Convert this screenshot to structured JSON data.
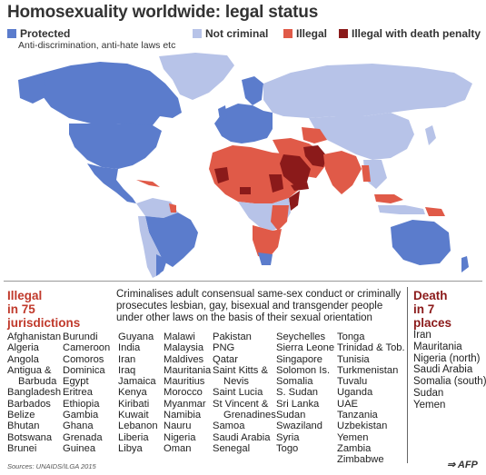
{
  "title": "Homosexuality worldwide: legal status",
  "legend": {
    "protected": "Protected",
    "protected_note": "Anti-discrimination, anti-hate laws etc",
    "not_criminal": "Not criminal",
    "illegal": "Illegal",
    "illegal_death": "Illegal with death penalty"
  },
  "colors": {
    "protected": "#5b7ccc",
    "not_criminal": "#b7c3e8",
    "illegal": "#e05a48",
    "illegal_death": "#8b1a1a"
  },
  "illegal_section": {
    "heading_1": "Illegal",
    "heading_2": "in 75",
    "heading_3": "jurisdictions",
    "description": "Criminalises adult consensual same-sex conduct or criminally prosecutes lesbian, gay, bisexual and transgender people under other laws on the basis of their sexual orientation",
    "columns": [
      [
        "Afghanistan",
        "Algeria",
        "Angola",
        "Antigua &",
        "Barbuda",
        "Bangladesh",
        "Barbados",
        "Belize",
        "Bhutan",
        "Botswana",
        "Brunei"
      ],
      [
        "Burundi",
        "Cameroon",
        "Comoros",
        "Dominica",
        "Egypt",
        "Eritrea",
        "Ethiopia",
        "Gambia",
        "Ghana",
        "Grenada",
        "Guinea"
      ],
      [
        "Guyana",
        "India",
        "Iran",
        "Iraq",
        "Jamaica",
        "Kenya",
        "Kiribati",
        "Kuwait",
        "Lebanon",
        "Liberia",
        "Libya"
      ],
      [
        "Malawi",
        "Malaysia",
        "Maldives",
        "Mauritania",
        "Mauritius",
        "Morocco",
        "Myanmar",
        "Namibia",
        "Nauru",
        "Nigeria",
        "Oman"
      ],
      [
        "Pakistan",
        "PNG",
        "Qatar",
        "Saint Kitts &",
        "Nevis",
        "Saint Lucia",
        "St Vincent &",
        "Grenadines",
        "Samoa",
        "Saudi Arabia",
        "Senegal"
      ],
      [
        "Seychelles",
        "Sierra Leone",
        "Singapore",
        "Solomon Is.",
        "Somalia",
        "S. Sudan",
        "Sri Lanka",
        "Sudan",
        "Swaziland",
        "Syria",
        "Togo"
      ],
      [
        "Tonga",
        "Trinidad & Tob.",
        "Tunisia",
        "Turkmenistan",
        "Tuvalu",
        "Uganda",
        "UAE",
        "Tanzania",
        "Uzbekistan",
        "Yemen",
        "Zambia",
        "Zimbabwe"
      ]
    ]
  },
  "death_section": {
    "heading_1": "Death",
    "heading_2": "in 7",
    "heading_3": "places",
    "items": [
      "Iran",
      "Mauritania",
      "Nigeria (north)",
      "Saudi Arabia",
      "Somalia (south)",
      "Sudan",
      "Yemen"
    ]
  },
  "source": "Sources: UNAIDS/ILGA 2015",
  "credit": "AFP"
}
